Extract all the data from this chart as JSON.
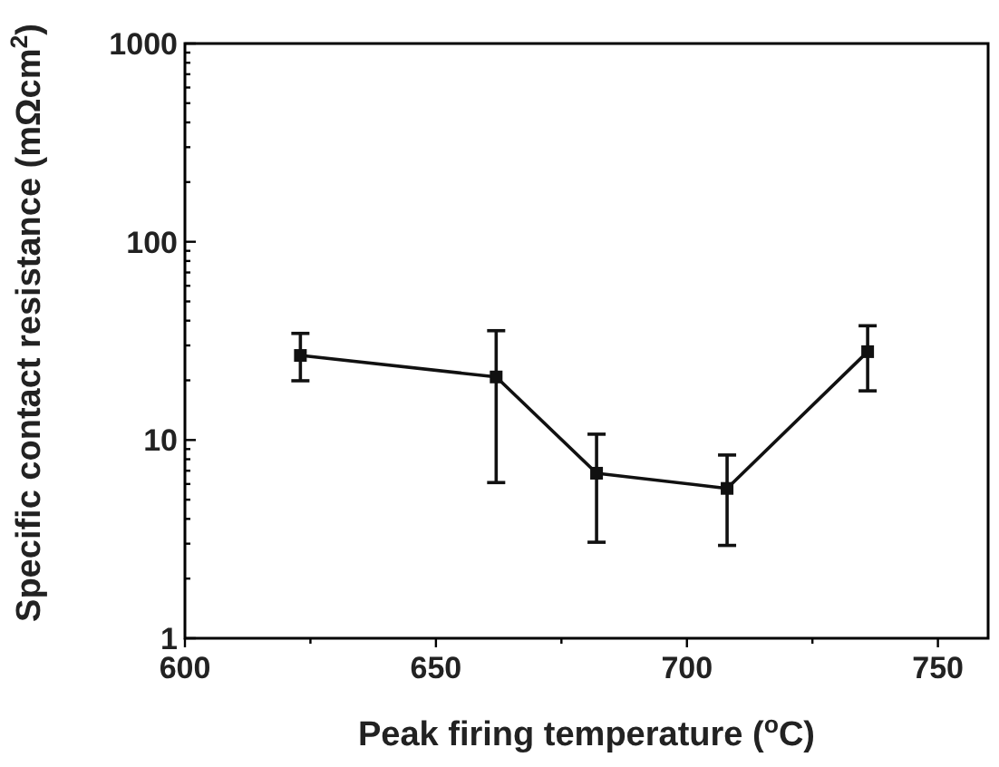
{
  "chart_data": {
    "type": "line",
    "xlabel": "Peak firing temperature ($^{o}$C)",
    "ylabel": "Specific contact resistance (mΩcm$^{2}$)",
    "log": "y",
    "marker": "square",
    "line_style": "solid",
    "x": [
      623,
      662,
      682,
      708,
      736
    ],
    "series": [
      {
        "color": "#111111",
        "values": [
          26.7,
          20.8,
          6.8,
          5.7,
          27.9
        ],
        "errors": [
          [
            19.9,
            34.5
          ],
          [
            6.1,
            35.6
          ],
          [
            3.05,
            10.7
          ],
          [
            2.94,
            8.4
          ],
          [
            17.7,
            37.7
          ]
        ]
      }
    ],
    "xlim": [
      600,
      760
    ],
    "xticks": [
      600,
      {
        "value": 625,
        "label": null
      },
      650,
      {
        "value": 675,
        "label": null
      },
      700,
      {
        "value": 725,
        "label": null
      },
      750
    ],
    "ylim": [
      1,
      1000
    ],
    "yticks": [
      1,
      {
        "value": 2,
        "label": null
      },
      {
        "value": 3,
        "label": null
      },
      {
        "value": 4,
        "label": null
      },
      {
        "value": 5,
        "label": null
      },
      {
        "value": 6,
        "label": null
      },
      {
        "value": 7,
        "label": null
      },
      {
        "value": 8,
        "label": null
      },
      {
        "value": 9,
        "label": null
      },
      10,
      {
        "value": 20,
        "label": null
      },
      {
        "value": 30,
        "label": null
      },
      {
        "value": 40,
        "label": null
      },
      {
        "value": 50,
        "label": null
      },
      {
        "value": 60,
        "label": null
      },
      {
        "value": 70,
        "label": null
      },
      {
        "value": 80,
        "label": null
      },
      {
        "value": 90,
        "label": null
      },
      100,
      {
        "value": 200,
        "label": null
      },
      {
        "value": 300,
        "label": null
      },
      {
        "value": 400,
        "label": null
      },
      {
        "value": 500,
        "label": null
      },
      {
        "value": 600,
        "label": null
      },
      {
        "value": 700,
        "label": null
      },
      {
        "value": 800,
        "label": null
      },
      {
        "value": 900,
        "label": null
      },
      1000
    ]
  }
}
